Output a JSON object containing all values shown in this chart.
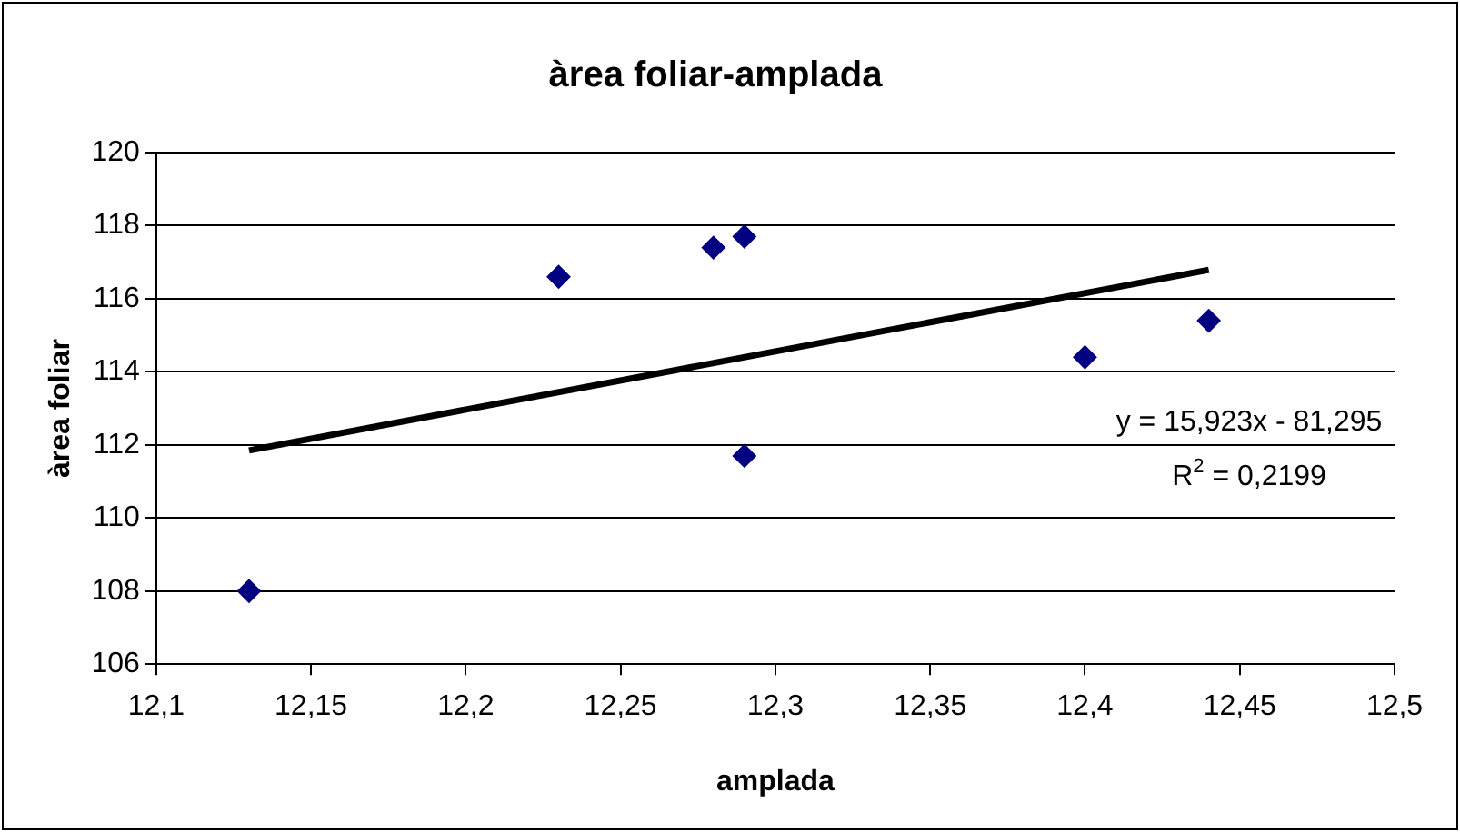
{
  "chart_data": {
    "type": "scatter",
    "title": "àrea foliar-amplada",
    "xlabel": "amplada",
    "ylabel": "àrea foliar",
    "x": [
      12.13,
      12.23,
      12.28,
      12.29,
      12.29,
      12.4,
      12.44
    ],
    "series": [
      {
        "color": "#000080",
        "marker": "diamond",
        "values": [
          108,
          116.6,
          117.4,
          117.7,
          111.7,
          114.4,
          115.4
        ]
      },
      {
        "type": "line",
        "color": "#000000",
        "marker": "none",
        "x": [
          12.13,
          12.44
        ],
        "values": [
          111.85,
          116.79
        ]
      }
    ],
    "xlim": [
      12.1,
      12.5
    ],
    "xticks": [
      {
        "value": 12.1,
        "label": "12,1"
      },
      {
        "value": 12.15,
        "label": "12,15"
      },
      {
        "value": 12.2,
        "label": "12,2"
      },
      {
        "value": 12.25,
        "label": "12,25"
      },
      {
        "value": 12.3,
        "label": "12,3"
      },
      {
        "value": 12.35,
        "label": "12,35"
      },
      {
        "value": 12.4,
        "label": "12,4"
      },
      {
        "value": 12.45,
        "label": "12,45"
      },
      {
        "value": 12.5,
        "label": "12,5"
      }
    ],
    "ylim": [
      106,
      120
    ],
    "yticks": [
      106,
      108,
      110,
      112,
      114,
      116,
      118,
      120
    ],
    "grid": "y",
    "legend": false,
    "annotations": [
      "y = 15,923x - 81,295",
      "R$^{2}$ = 0,2199"
    ]
  }
}
